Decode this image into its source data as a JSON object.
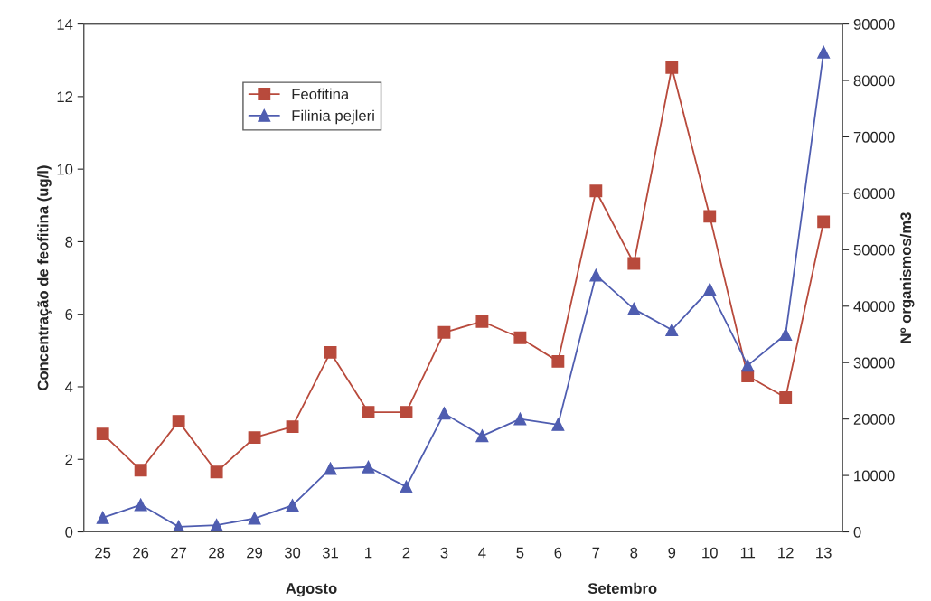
{
  "chart_data": {
    "type": "line",
    "categories": [
      "25",
      "26",
      "27",
      "28",
      "29",
      "30",
      "31",
      "1",
      "2",
      "3",
      "4",
      "5",
      "6",
      "7",
      "8",
      "9",
      "10",
      "11",
      "12",
      "13"
    ],
    "series": [
      {
        "name": "Feofitina",
        "color": "#b84a3c",
        "marker": "square",
        "values": [
          2.7,
          1.7,
          3.05,
          1.65,
          2.6,
          2.9,
          4.95,
          3.3,
          3.3,
          5.5,
          5.8,
          5.35,
          4.7,
          9.4,
          7.4,
          12.8,
          8.7,
          4.3,
          3.7,
          8.55
        ]
      },
      {
        "name": "Filinia pejleri",
        "color": "#4f5db0",
        "marker": "triangle",
        "axis": "y2",
        "values": [
          2500,
          4800,
          900,
          1200,
          2400,
          4700,
          11200,
          11500,
          8000,
          21000,
          17000,
          20000,
          19000,
          45500,
          39500,
          35800,
          43000,
          29500,
          35000,
          85000
        ]
      }
    ],
    "ylabel": "Concentração de feofitina (ug/l)",
    "y2label": "Nº organismos/m3",
    "ylim": [
      0,
      14
    ],
    "yticks": [
      0,
      2,
      4,
      6,
      8,
      10,
      12,
      14
    ],
    "y2lim": [
      0,
      90000
    ],
    "y2ticks": [
      0,
      10000,
      20000,
      30000,
      40000,
      50000,
      60000,
      70000,
      80000,
      90000
    ],
    "annotations": [
      "Agosto",
      "Setembro"
    ],
    "legend": "top left",
    "grid": false,
    "line_style": "solid"
  }
}
